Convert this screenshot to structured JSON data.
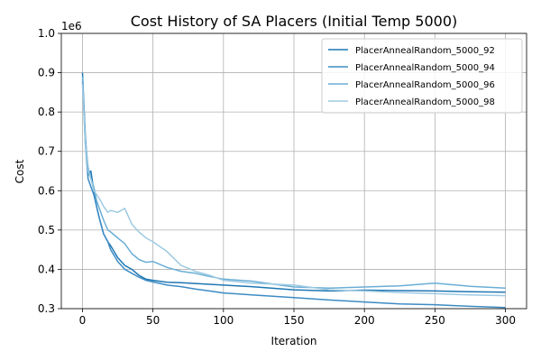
{
  "chart_data": {
    "type": "line",
    "title": "Cost History of SA Placers (Initial Temp 5000)",
    "xlabel": "Iteration",
    "ylabel": "Cost",
    "y_offset_label": "1e6",
    "xlim": [
      -15,
      315
    ],
    "ylim": [
      300000,
      1000000
    ],
    "xticks": [
      0,
      50,
      100,
      150,
      200,
      250,
      300
    ],
    "yticks": [
      300000,
      400000,
      500000,
      600000,
      700000,
      800000,
      900000,
      1000000
    ],
    "ytick_labels": [
      "0.3",
      "0.4",
      "0.5",
      "0.6",
      "0.7",
      "0.8",
      "0.9",
      "1.0"
    ],
    "grid": true,
    "legend_position": "top-right",
    "series": [
      {
        "name": "PlacerAnnealRandom_5000_92",
        "color": "#1f77b4",
        "x": [
          0,
          2,
          4,
          6,
          8,
          10,
          12,
          15,
          18,
          20,
          25,
          30,
          35,
          40,
          45,
          50,
          60,
          70,
          80,
          90,
          100,
          120,
          150,
          175,
          200,
          225,
          250,
          275,
          300
        ],
        "y": [
          900000,
          740000,
          640000,
          650000,
          600000,
          560000,
          530000,
          490000,
          470000,
          460000,
          430000,
          410000,
          400000,
          385000,
          375000,
          372000,
          367000,
          366000,
          364000,
          362000,
          360000,
          356000,
          348000,
          345000,
          347000,
          346000,
          345000,
          343000,
          342000
        ]
      },
      {
        "name": "PlacerAnnealRandom_5000_94",
        "color": "#3d8bc4",
        "x": [
          0,
          2,
          4,
          6,
          8,
          10,
          12,
          15,
          18,
          20,
          25,
          30,
          35,
          40,
          45,
          50,
          60,
          70,
          80,
          90,
          100,
          120,
          150,
          175,
          200,
          225,
          250,
          275,
          300
        ],
        "y": [
          880000,
          720000,
          630000,
          610000,
          590000,
          560000,
          530000,
          490000,
          470000,
          450000,
          420000,
          400000,
          390000,
          380000,
          372000,
          368000,
          360000,
          356000,
          350000,
          345000,
          340000,
          335000,
          328000,
          322000,
          317000,
          312000,
          310000,
          306000,
          303000
        ]
      },
      {
        "name": "PlacerAnnealRandom_5000_96",
        "color": "#6aaed6",
        "x": [
          0,
          2,
          4,
          6,
          8,
          10,
          12,
          15,
          18,
          20,
          25,
          30,
          35,
          40,
          45,
          50,
          60,
          70,
          80,
          90,
          100,
          120,
          150,
          175,
          200,
          225,
          250,
          275,
          300
        ],
        "y": [
          890000,
          730000,
          660000,
          630000,
          610000,
          575000,
          555000,
          525000,
          500000,
          495000,
          480000,
          465000,
          440000,
          425000,
          418000,
          420000,
          405000,
          395000,
          390000,
          382000,
          375000,
          370000,
          355000,
          352000,
          355000,
          358000,
          365000,
          357000,
          352000
        ]
      },
      {
        "name": "PlacerAnnealRandom_5000_98",
        "color": "#9ecae1",
        "x": [
          0,
          2,
          4,
          6,
          8,
          10,
          12,
          15,
          18,
          20,
          25,
          30,
          35,
          40,
          45,
          50,
          60,
          70,
          80,
          90,
          100,
          120,
          150,
          175,
          200,
          225,
          250,
          275,
          300
        ],
        "y": [
          870000,
          720000,
          650000,
          630000,
          600000,
          590000,
          580000,
          560000,
          545000,
          550000,
          545000,
          555000,
          515000,
          495000,
          480000,
          470000,
          445000,
          410000,
          395000,
          385000,
          372000,
          365000,
          360000,
          348000,
          345000,
          341000,
          338000,
          335000,
          333000
        ]
      }
    ]
  }
}
